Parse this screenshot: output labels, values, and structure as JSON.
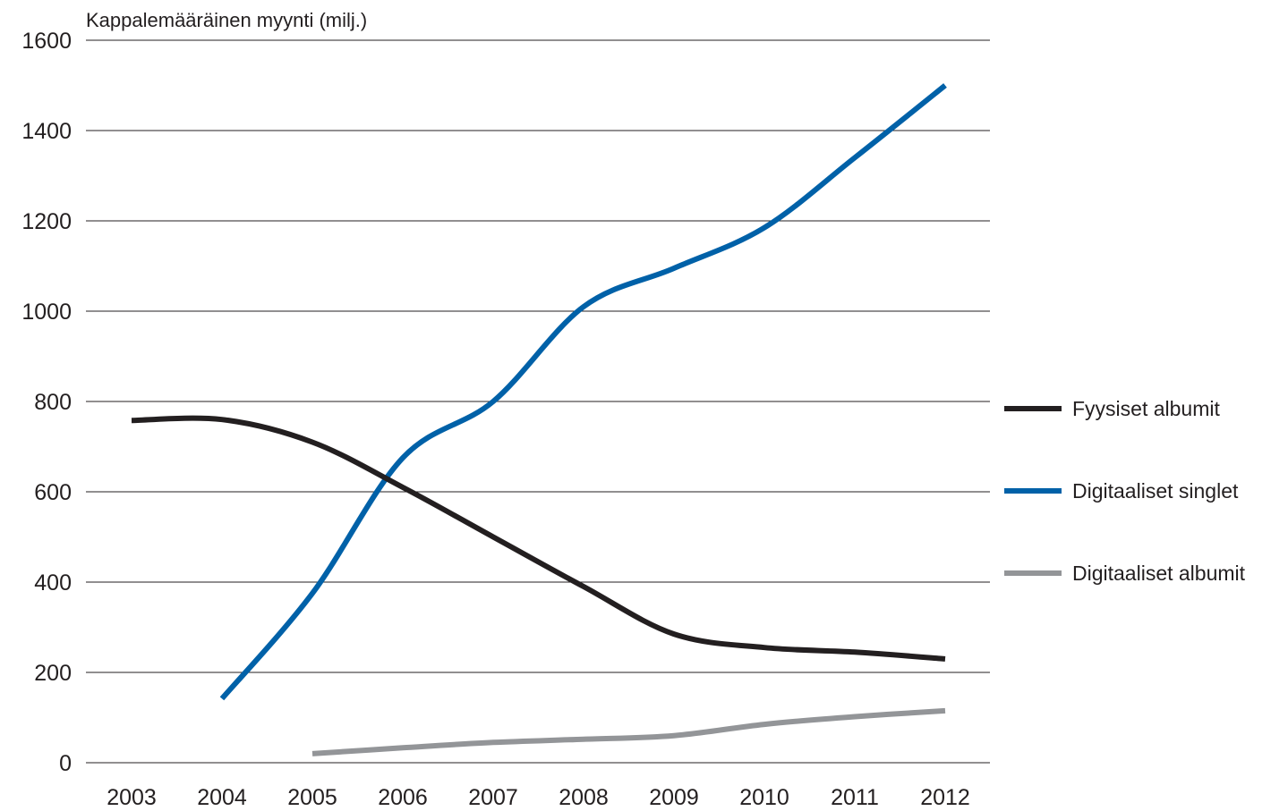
{
  "chart_data": {
    "type": "line",
    "ylabel": "Kappalemääräinen myynti (milj.)",
    "xlabel": "",
    "x": [
      "2003",
      "2004",
      "2005",
      "2006",
      "2007",
      "2008",
      "2009",
      "2010",
      "2011",
      "2012"
    ],
    "ylim": [
      0,
      1600
    ],
    "yticks": [
      0,
      200,
      400,
      600,
      800,
      1000,
      1200,
      1400,
      1600
    ],
    "grid": true,
    "legend_position": "right",
    "series": [
      {
        "name": "Fyysiset albumit",
        "color": "#231f20",
        "values": [
          758,
          760,
          710,
          610,
          500,
          390,
          285,
          255,
          245,
          230
        ]
      },
      {
        "name": "Digitaaliset singlet",
        "color": "#0061a8",
        "values": [
          null,
          142,
          375,
          675,
          800,
          1010,
          1095,
          1185,
          1340,
          1500
        ]
      },
      {
        "name": "Digitaaliset albumit",
        "color": "#939598",
        "values": [
          null,
          null,
          20,
          33,
          45,
          52,
          60,
          85,
          102,
          115
        ]
      }
    ]
  }
}
